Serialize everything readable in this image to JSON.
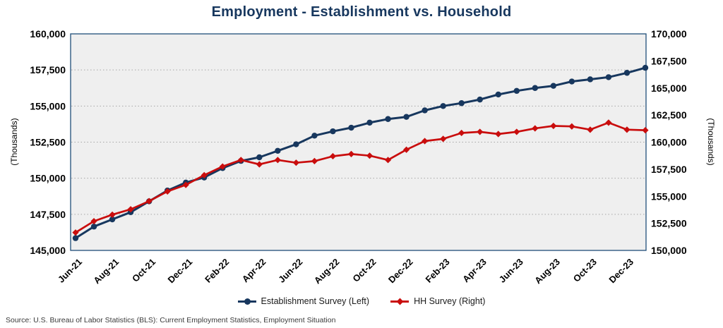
{
  "title": "Employment - Establishment vs. Household",
  "source": "Source: U.S. Bureau of Labor Statistics (BLS): Current Employment Statistics, Employment Situation",
  "colors": {
    "establishment": "#17375E",
    "household": "#C90D0D",
    "title_text": "#17375E",
    "plot_bg": "#EFEFEF",
    "grid": "#A6A6A6",
    "frame": "#1F4E79",
    "tick_text": "#000000"
  },
  "legend": [
    {
      "label": "Establishment Survey (Left)",
      "marker": "circle"
    },
    {
      "label": "HH Survey (Right)",
      "marker": "diamond"
    }
  ],
  "left_axis": {
    "title": "(Thousands)",
    "ticks": [
      "160,000",
      "157,500",
      "155,000",
      "152,500",
      "150,000",
      "147,500",
      "145,000"
    ],
    "grid_values": [
      157500,
      155000,
      152500,
      150000,
      147500
    ]
  },
  "right_axis": {
    "title": "(Thousands)",
    "ticks": [
      "170,000",
      "167,500",
      "165,000",
      "162,500",
      "160,000",
      "157,500",
      "155,000",
      "152,500",
      "150,000"
    ]
  },
  "chart_data": {
    "type": "line",
    "title": "Employment - Establishment vs. Household",
    "x": [
      "Jun-21",
      "Jul-21",
      "Aug-21",
      "Sep-21",
      "Oct-21",
      "Nov-21",
      "Dec-21",
      "Jan-22",
      "Feb-22",
      "Mar-22",
      "Apr-22",
      "May-22",
      "Jun-22",
      "Jul-22",
      "Aug-22",
      "Sep-22",
      "Oct-22",
      "Nov-22",
      "Dec-22",
      "Jan-23",
      "Feb-23",
      "Mar-23",
      "Apr-23",
      "May-23",
      "Jun-23",
      "Jul-23",
      "Aug-23",
      "Sep-23",
      "Oct-23",
      "Nov-23",
      "Dec-23",
      "Jan-24"
    ],
    "x_label_every": 2,
    "x_tick_labels": [
      "Jun-21",
      "Aug-21",
      "Oct-21",
      "Dec-21",
      "Feb-22",
      "Apr-22",
      "Jun-22",
      "Aug-22",
      "Oct-22",
      "Dec-22",
      "Feb-23",
      "Apr-23",
      "Jun-23",
      "Aug-23",
      "Oct-23",
      "Dec-23"
    ],
    "left_ylim": [
      145000,
      160000
    ],
    "right_ylim": [
      150000,
      170000
    ],
    "grid": "horizontal dotted",
    "legend_position": "bottom",
    "series": [
      {
        "name": "Establishment Survey (Left)",
        "axis": "left",
        "marker": "circle",
        "values": [
          145850,
          146650,
          147150,
          147650,
          148400,
          149150,
          149700,
          150050,
          150700,
          151200,
          151450,
          151900,
          152350,
          152950,
          153250,
          153500,
          153850,
          154100,
          154250,
          154700,
          155000,
          155200,
          155450,
          155800,
          156050,
          156250,
          156400,
          156700,
          156850,
          157000,
          157300,
          157650
        ]
      },
      {
        "name": "HH Survey (Right)",
        "axis": "right",
        "marker": "diamond",
        "values": [
          151650,
          152700,
          153300,
          153800,
          154550,
          155450,
          156050,
          156950,
          157750,
          158350,
          157950,
          158350,
          158100,
          158250,
          158700,
          158900,
          158750,
          158350,
          159300,
          160100,
          160300,
          160850,
          160950,
          160750,
          160950,
          161270,
          161500,
          161450,
          161150,
          161800,
          161150,
          161100
        ]
      }
    ]
  }
}
